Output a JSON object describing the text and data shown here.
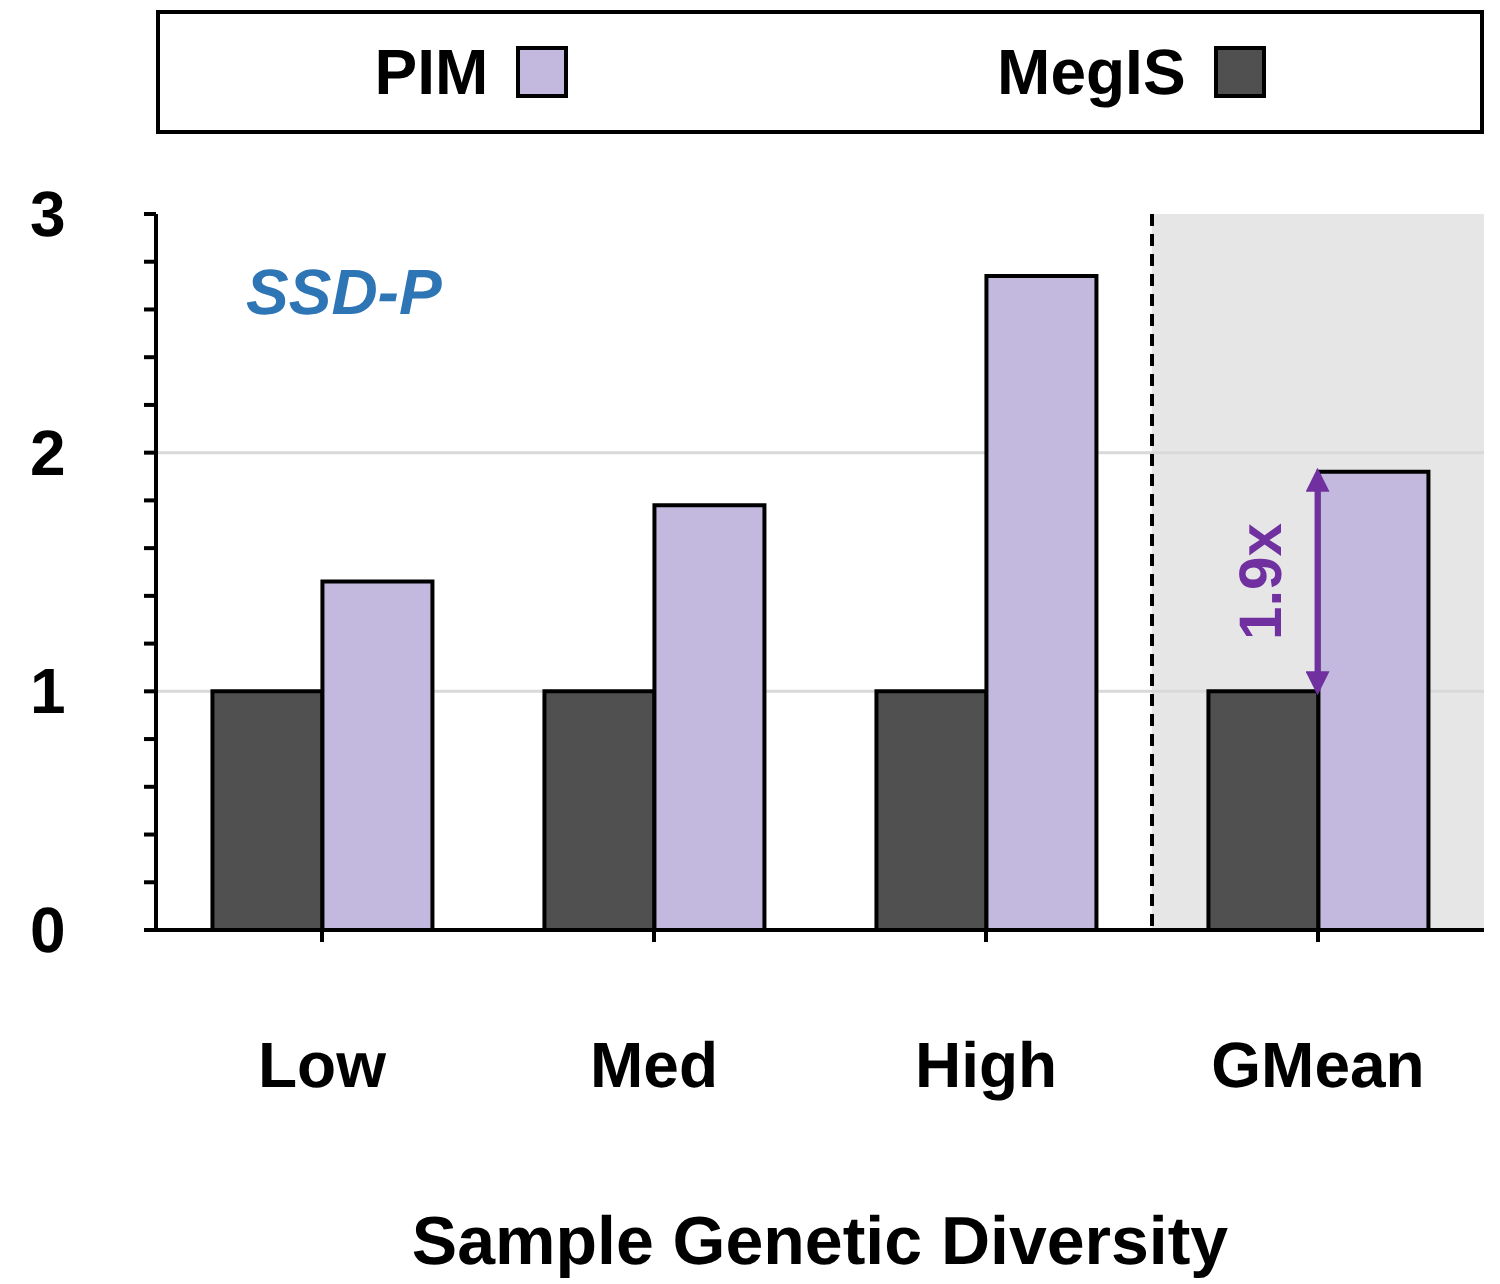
{
  "chart_data": {
    "type": "bar",
    "xlabel": "Sample Genetic Diversity",
    "categories": [
      "Low",
      "Med",
      "High",
      "GMean"
    ],
    "series": [
      {
        "name": "MegIS",
        "color": "#505050",
        "values": [
          1,
          1,
          1,
          1
        ]
      },
      {
        "name": "PIM",
        "color": "#c3b8de",
        "values": [
          1.46,
          1.78,
          2.74,
          1.92
        ]
      }
    ],
    "ylim": [
      0,
      3
    ],
    "yticks": [
      0,
      {
        "value": 0.2,
        "label": null
      },
      {
        "value": 0.4,
        "label": null
      },
      {
        "value": 0.6,
        "label": null
      },
      {
        "value": 0.8,
        "label": null
      },
      1,
      {
        "value": 1.2,
        "label": null
      },
      {
        "value": 1.4,
        "label": null
      },
      {
        "value": 1.6,
        "label": null
      },
      {
        "value": 1.8,
        "label": null
      },
      2,
      {
        "value": 2.2,
        "label": null
      },
      {
        "value": 2.4,
        "label": null
      },
      {
        "value": 2.6,
        "label": null
      },
      {
        "value": 2.8,
        "label": null
      },
      3
    ],
    "grid": "y",
    "legend": "top",
    "ref_lines": [
      {
        "axis": "x",
        "value": "GMean",
        "line_style": "dashed",
        "color": "#000000"
      }
    ],
    "bands": [
      {
        "axis": "x",
        "from": "GMean",
        "to": "GMean",
        "color": "#e6e6e6"
      }
    ],
    "annotations": [
      "SSD-P",
      {
        "text": "1.9x",
        "x": "GMean",
        "y": 1.46
      }
    ]
  }
}
